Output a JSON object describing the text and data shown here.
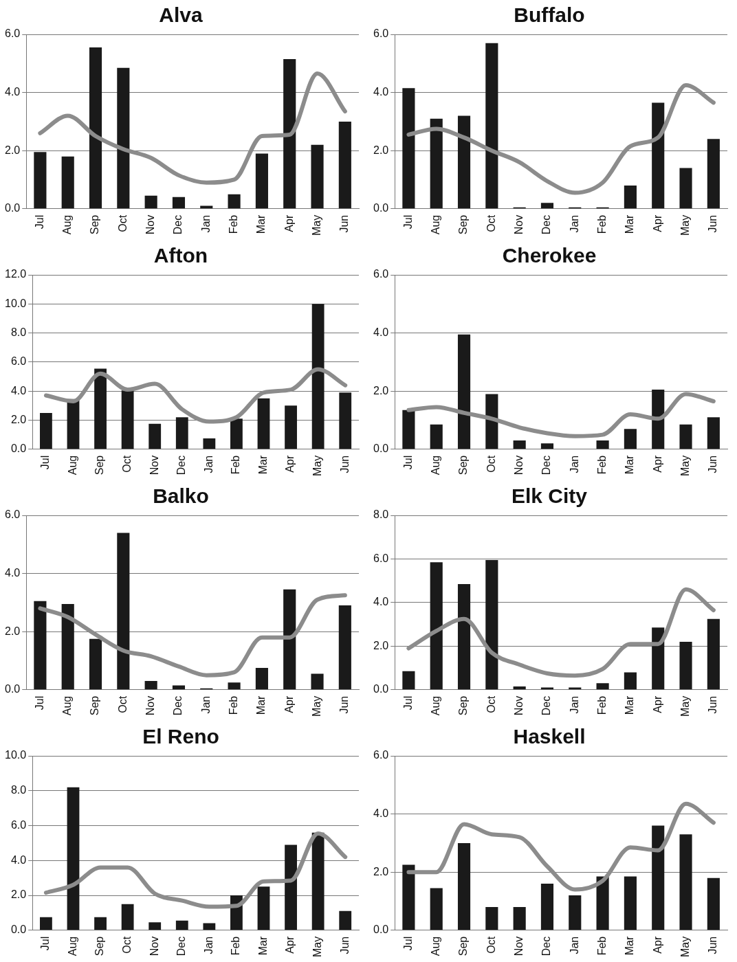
{
  "chart_data": [
    {
      "type": "bar",
      "title": "Alva",
      "categories": [
        "Jul",
        "Aug",
        "Sep",
        "Oct",
        "Nov",
        "Dec",
        "Jan",
        "Feb",
        "Mar",
        "Apr",
        "May",
        "Jun"
      ],
      "ylim": [
        0,
        6
      ],
      "yticks": [
        {
          "value": 0,
          "label": "0.0"
        },
        {
          "value": 2,
          "label": "2.0"
        },
        {
          "value": 4,
          "label": "4.0"
        },
        {
          "value": 6,
          "label": "6.0"
        }
      ],
      "grid": "y",
      "marker": "none",
      "series": [
        {
          "color": "#1a1a1a",
          "values": [
            1.95,
            1.8,
            5.55,
            4.85,
            0.45,
            0.4,
            0.1,
            0.5,
            1.9,
            5.15,
            2.2,
            3.0
          ]
        },
        {
          "type": "line",
          "color": "#8c8c8c",
          "values": [
            2.6,
            3.2,
            2.5,
            2.05,
            1.75,
            1.15,
            0.9,
            1.0,
            2.5,
            2.55,
            4.65,
            3.35
          ]
        }
      ]
    },
    {
      "type": "bar",
      "title": "Buffalo",
      "categories": [
        "Jul",
        "Aug",
        "Sep",
        "Oct",
        "Nov",
        "Dec",
        "Jan",
        "Feb",
        "Mar",
        "Apr",
        "May",
        "Jun"
      ],
      "ylim": [
        0,
        6
      ],
      "yticks": [
        {
          "value": 0,
          "label": "0.0"
        },
        {
          "value": 2,
          "label": "2.0"
        },
        {
          "value": 4,
          "label": "4.0"
        },
        {
          "value": 6,
          "label": "6.0"
        }
      ],
      "grid": "y",
      "marker": "none",
      "series": [
        {
          "color": "#1a1a1a",
          "values": [
            4.15,
            3.1,
            3.2,
            5.7,
            0.05,
            0.2,
            0.05,
            0.05,
            0.8,
            3.65,
            1.4,
            2.4
          ]
        },
        {
          "type": "line",
          "color": "#8c8c8c",
          "values": [
            2.55,
            2.75,
            2.45,
            2.0,
            1.6,
            0.95,
            0.55,
            0.9,
            2.15,
            2.45,
            4.25,
            3.65
          ]
        }
      ]
    },
    {
      "type": "bar",
      "title": "Afton",
      "categories": [
        "Jul",
        "Aug",
        "Sep",
        "Oct",
        "Nov",
        "Dec",
        "Jan",
        "Feb",
        "Mar",
        "Apr",
        "May",
        "Jun"
      ],
      "ylim": [
        0,
        12
      ],
      "yticks": [
        {
          "value": 0,
          "label": "0.0"
        },
        {
          "value": 2,
          "label": "2.0"
        },
        {
          "value": 4,
          "label": "4.0"
        },
        {
          "value": 6,
          "label": "6.0"
        },
        {
          "value": 8,
          "label": "8.0"
        },
        {
          "value": 10,
          "label": "10.0"
        },
        {
          "value": 12,
          "label": "12.0"
        }
      ],
      "grid": "y",
      "marker": "none",
      "series": [
        {
          "color": "#1a1a1a",
          "values": [
            2.5,
            3.45,
            5.55,
            4.05,
            1.75,
            2.2,
            0.75,
            2.1,
            3.5,
            3.0,
            10.0,
            3.9
          ]
        },
        {
          "type": "line",
          "color": "#8c8c8c",
          "values": [
            3.7,
            3.3,
            5.2,
            4.1,
            4.5,
            2.75,
            1.9,
            2.2,
            3.9,
            4.1,
            5.5,
            4.4
          ]
        }
      ]
    },
    {
      "type": "bar",
      "title": "Cherokee",
      "categories": [
        "Jul",
        "Aug",
        "Sep",
        "Oct",
        "Nov",
        "Dec",
        "Jan",
        "Feb",
        "Mar",
        "Apr",
        "May",
        "Jun"
      ],
      "ylim": [
        0,
        6
      ],
      "yticks": [
        {
          "value": 0,
          "label": "0.0"
        },
        {
          "value": 2,
          "label": "2.0"
        },
        {
          "value": 4,
          "label": "4.0"
        },
        {
          "value": 6,
          "label": "6.0"
        }
      ],
      "grid": "y",
      "marker": "none",
      "series": [
        {
          "color": "#1a1a1a",
          "values": [
            1.35,
            0.85,
            3.95,
            1.9,
            0.3,
            0.2,
            0,
            0.3,
            0.7,
            2.05,
            0.85,
            1.1
          ]
        },
        {
          "type": "line",
          "color": "#8c8c8c",
          "values": [
            1.35,
            1.45,
            1.25,
            1.05,
            0.75,
            0.55,
            0.45,
            0.5,
            1.2,
            1.05,
            1.9,
            1.65
          ]
        }
      ]
    },
    {
      "type": "bar",
      "title": "Balko",
      "categories": [
        "Jul",
        "Aug",
        "Sep",
        "Oct",
        "Nov",
        "Dec",
        "Jan",
        "Feb",
        "Mar",
        "Apr",
        "May",
        "Jun"
      ],
      "ylim": [
        0,
        6
      ],
      "yticks": [
        {
          "value": 0,
          "label": "0.0"
        },
        {
          "value": 2,
          "label": "2.0"
        },
        {
          "value": 4,
          "label": "4.0"
        },
        {
          "value": 6,
          "label": "6.0"
        }
      ],
      "grid": "y",
      "marker": "none",
      "series": [
        {
          "color": "#1a1a1a",
          "values": [
            3.05,
            2.95,
            1.75,
            5.4,
            0.3,
            0.15,
            0.05,
            0.25,
            0.75,
            3.45,
            0.55,
            2.9
          ]
        },
        {
          "type": "line",
          "color": "#8c8c8c",
          "values": [
            2.8,
            2.5,
            1.9,
            1.35,
            1.15,
            0.8,
            0.5,
            0.6,
            1.8,
            1.8,
            3.1,
            3.25
          ]
        }
      ]
    },
    {
      "type": "bar",
      "title": "Elk City",
      "categories": [
        "Jul",
        "Aug",
        "Sep",
        "Oct",
        "Nov",
        "Dec",
        "Jan",
        "Feb",
        "Mar",
        "Apr",
        "May",
        "Jun"
      ],
      "ylim": [
        0,
        8
      ],
      "yticks": [
        {
          "value": 0,
          "label": "0.0"
        },
        {
          "value": 2,
          "label": "2.0"
        },
        {
          "value": 4,
          "label": "4.0"
        },
        {
          "value": 6,
          "label": "6.0"
        },
        {
          "value": 8,
          "label": "8.0"
        }
      ],
      "grid": "y",
      "marker": "none",
      "series": [
        {
          "color": "#1a1a1a",
          "values": [
            0.85,
            5.85,
            4.85,
            5.95,
            0.15,
            0.1,
            0.1,
            0.3,
            0.8,
            2.85,
            2.2,
            3.25
          ]
        },
        {
          "type": "line",
          "color": "#8c8c8c",
          "values": [
            1.9,
            2.7,
            3.25,
            1.7,
            1.15,
            0.75,
            0.65,
            0.95,
            2.1,
            2.1,
            4.6,
            3.65
          ]
        }
      ]
    },
    {
      "type": "bar",
      "title": "El Reno",
      "categories": [
        "Jul",
        "Aug",
        "Sep",
        "Oct",
        "Nov",
        "Dec",
        "Jan",
        "Feb",
        "Mar",
        "Apr",
        "May",
        "Jun"
      ],
      "ylim": [
        0,
        10
      ],
      "yticks": [
        {
          "value": 0,
          "label": "0.0"
        },
        {
          "value": 2,
          "label": "2.0"
        },
        {
          "value": 4,
          "label": "4.0"
        },
        {
          "value": 6,
          "label": "6.0"
        },
        {
          "value": 8,
          "label": "8.0"
        },
        {
          "value": 10,
          "label": "10.0"
        }
      ],
      "grid": "y",
      "marker": "none",
      "series": [
        {
          "color": "#1a1a1a",
          "values": [
            0.75,
            8.2,
            0.75,
            1.5,
            0.45,
            0.55,
            0.4,
            2.0,
            2.5,
            4.9,
            5.6,
            1.1
          ]
        },
        {
          "type": "line",
          "color": "#8c8c8c",
          "values": [
            2.15,
            2.6,
            3.6,
            3.6,
            2.1,
            1.7,
            1.35,
            1.4,
            2.8,
            2.85,
            5.55,
            4.2
          ]
        }
      ]
    },
    {
      "type": "bar",
      "title": "Haskell",
      "categories": [
        "Jul",
        "Aug",
        "Sep",
        "Oct",
        "Nov",
        "Dec",
        "Jan",
        "Feb",
        "Mar",
        "Apr",
        "May",
        "Jun"
      ],
      "ylim": [
        0,
        6
      ],
      "yticks": [
        {
          "value": 0,
          "label": "0.0"
        },
        {
          "value": 2,
          "label": "2.0"
        },
        {
          "value": 4,
          "label": "4.0"
        },
        {
          "value": 6,
          "label": "6.0"
        }
      ],
      "grid": "y",
      "marker": "none",
      "series": [
        {
          "color": "#1a1a1a",
          "values": [
            2.25,
            1.45,
            3.0,
            0.8,
            0.8,
            1.6,
            1.2,
            1.85,
            1.85,
            3.6,
            3.3,
            1.8
          ]
        },
        {
          "type": "line",
          "color": "#8c8c8c",
          "values": [
            2.0,
            2.0,
            3.65,
            3.3,
            3.2,
            2.2,
            1.4,
            1.7,
            2.85,
            2.75,
            4.35,
            3.7
          ]
        }
      ]
    }
  ]
}
